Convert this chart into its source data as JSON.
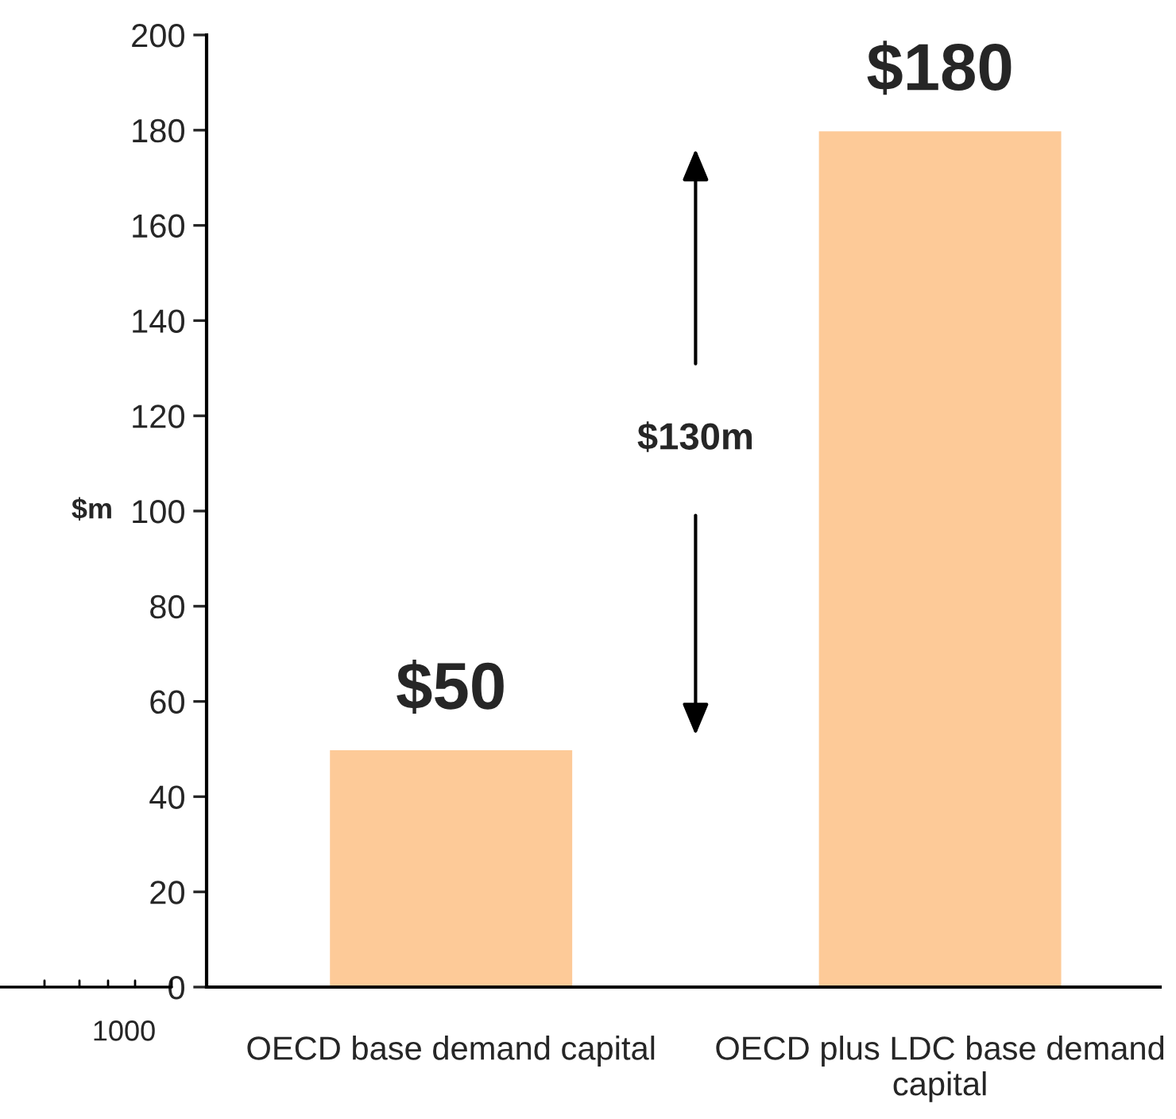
{
  "chart_data": {
    "type": "bar",
    "categories": [
      "OECD base demand capital",
      "OECD plus LDC base demand capital"
    ],
    "values": [
      50,
      180
    ],
    "color": "#fdca98",
    "value_labels": [
      "$50",
      "$180"
    ],
    "ylabel": "$m",
    "ylim": [
      0,
      200
    ],
    "yticks": [
      0,
      20,
      40,
      60,
      80,
      100,
      120,
      140,
      160,
      180,
      200
    ],
    "annotations": [
      "$130m",
      "1000"
    ],
    "grid": false,
    "legend": false
  }
}
